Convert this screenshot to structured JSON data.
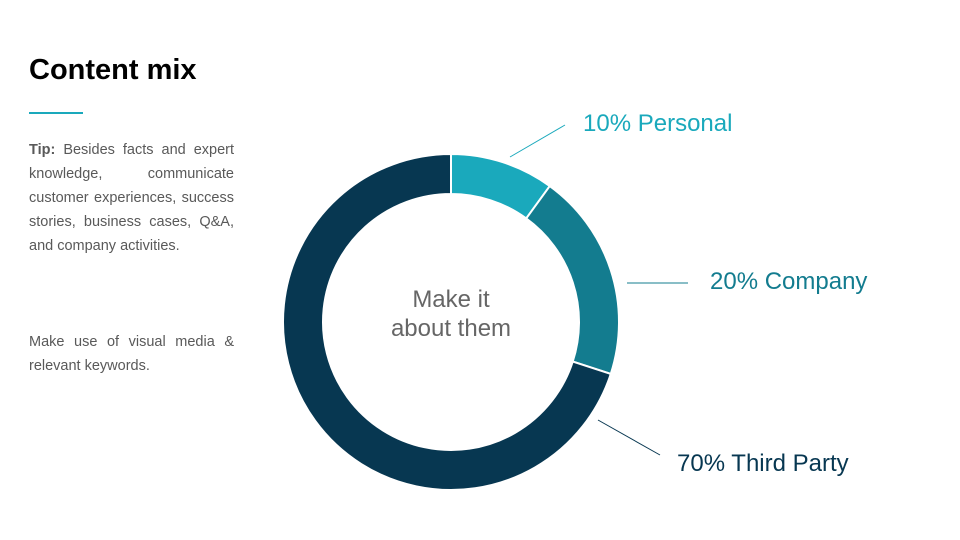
{
  "title": "Content mix",
  "tip": {
    "label": "Tip:",
    "text": "Besides facts and expert knowledge, communicate customer experiences, success stories, business cases, Q&A, and company activities."
  },
  "note": "Make use of visual media & relevant keywords.",
  "chart_data": {
    "type": "donut",
    "categories": [
      "Personal",
      "Company",
      "Third Party"
    ],
    "values": [
      10,
      20,
      70
    ],
    "value_labels": [
      "10%",
      "20%",
      "70%"
    ],
    "colors": [
      "#1aa9bc",
      "#137c8f",
      "#073751"
    ],
    "center_label": [
      "Make it",
      "about them"
    ]
  }
}
